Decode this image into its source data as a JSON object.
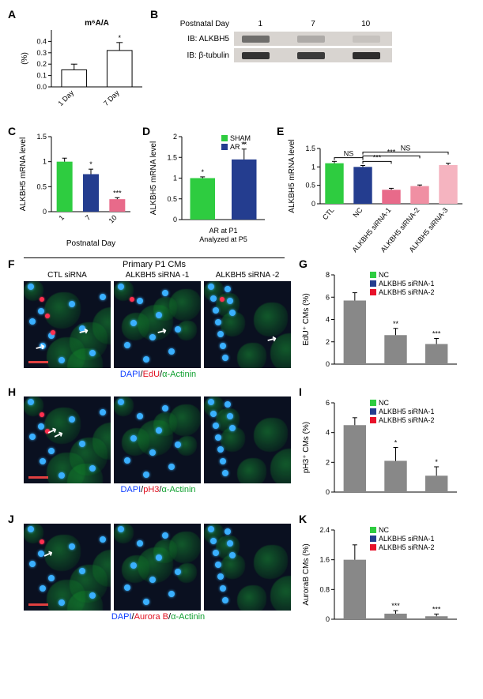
{
  "panelA": {
    "label": "A",
    "title": "m⁶A/A",
    "ylabel": "(%)",
    "ylim": [
      0,
      0.5
    ],
    "yticks": [
      0,
      0.1,
      0.2,
      0.3,
      0.4
    ],
    "categories": [
      "1 Day",
      "7 Day"
    ],
    "values": [
      0.15,
      0.32
    ],
    "errors": [
      0.05,
      0.07
    ],
    "sig": [
      "",
      "*"
    ],
    "bar_border": "#000",
    "bar_fill": "#ffffff"
  },
  "panelB": {
    "label": "B",
    "header": "Postnatal Day",
    "days": [
      "1",
      "7",
      "10"
    ],
    "rows": [
      {
        "label": "IB: ALKBH5",
        "height": 18,
        "bands": [
          {
            "x": 10,
            "w": 35,
            "intensity": 0.6
          },
          {
            "x": 80,
            "w": 35,
            "intensity": 0.25
          },
          {
            "x": 150,
            "w": 35,
            "intensity": 0.1
          }
        ]
      },
      {
        "label": "IB: β-tubulin",
        "height": 18,
        "bands": [
          {
            "x": 10,
            "w": 35,
            "intensity": 0.95
          },
          {
            "x": 80,
            "w": 35,
            "intensity": 0.9
          },
          {
            "x": 150,
            "w": 35,
            "intensity": 0.98
          }
        ]
      }
    ]
  },
  "panelC": {
    "label": "C",
    "ylabel": "ALKBH5 mRNA level",
    "xlabel": "Postnatal Day",
    "ylim": [
      0,
      1.5
    ],
    "yticks": [
      0,
      0.5,
      1.0,
      1.5
    ],
    "categories": [
      "1",
      "7",
      "10"
    ],
    "values": [
      1.0,
      0.75,
      0.25
    ],
    "errors": [
      0.07,
      0.1,
      0.03
    ],
    "colors": [
      "#2ecc40",
      "#243d8f",
      "#e86a8a"
    ],
    "sig": [
      "",
      "*",
      "***"
    ]
  },
  "panelD": {
    "label": "D",
    "ylabel": "ALKBH5 mRNA level",
    "xlabel_lines": [
      "AR at P1",
      "Analyzed at P5"
    ],
    "ylim": [
      0,
      2.0
    ],
    "yticks": [
      0,
      0.5,
      1.0,
      1.5,
      2.0
    ],
    "legend": [
      {
        "label": "SHAM",
        "color": "#2ecc40"
      },
      {
        "label": "AR",
        "color": "#243d8f"
      }
    ],
    "values": [
      1.0,
      1.45
    ],
    "errors": [
      0.03,
      0.25
    ],
    "colors": [
      "#2ecc40",
      "#243d8f"
    ],
    "sig": "**"
  },
  "panelE": {
    "label": "E",
    "ylabel": "ALKBH5 mRNA level",
    "ylim": [
      0,
      1.5
    ],
    "yticks": [
      0,
      0.5,
      1.0,
      1.5
    ],
    "categories": [
      "CTL",
      "NC",
      "ALKBH5 siRNA-1",
      "ALKBH5 siRNA-2",
      "ALKBH5 siRNA-3"
    ],
    "values": [
      1.1,
      1.0,
      0.38,
      0.48,
      1.05
    ],
    "errors": [
      0.05,
      0.04,
      0.04,
      0.03,
      0.05
    ],
    "colors": [
      "#2ecc40",
      "#243d8f",
      "#e86a8a",
      "#f08fa3",
      "#f5b4c0"
    ],
    "sig_bars": [
      {
        "from": 0,
        "to": 1,
        "y": 1.25,
        "label": "NS"
      },
      {
        "from": 1,
        "to": 2,
        "y": 1.15,
        "label": "***"
      },
      {
        "from": 1,
        "to": 3,
        "y": 1.3,
        "label": "***"
      },
      {
        "from": 1,
        "to": 4,
        "y": 1.4,
        "label": "NS"
      }
    ]
  },
  "panelF": {
    "label": "F",
    "header": "Primary P1 CMs",
    "columns": [
      "CTL siRNA",
      "ALKBH5 siRNA -1",
      "ALKBH5 siRNA -2"
    ],
    "stain": {
      "blue": "DAPI",
      "red": "EdU",
      "green": "α-Actinin"
    }
  },
  "panelG": {
    "label": "G",
    "ylabel": "EdU⁺ CMs (%)",
    "ylim": [
      0,
      8
    ],
    "yticks": [
      0,
      2,
      4,
      6,
      8
    ],
    "legend": [
      {
        "label": "NC",
        "color": "#2ecc40"
      },
      {
        "label": "ALKBH5 siRNA-1",
        "color": "#243d8f"
      },
      {
        "label": "ALKBH5 siRNA-2",
        "color": "#e8122a"
      }
    ],
    "values": [
      5.7,
      2.6,
      1.8
    ],
    "errors": [
      0.7,
      0.6,
      0.5
    ],
    "sig": [
      "",
      "**",
      "***"
    ]
  },
  "panelH": {
    "label": "H",
    "stain": {
      "blue": "DAPI",
      "red": "pH3",
      "green": "α-Actinin"
    }
  },
  "panelI": {
    "label": "I",
    "ylabel": "pH3⁺ CMs (%)",
    "ylim": [
      0,
      6
    ],
    "yticks": [
      0,
      2,
      4,
      6
    ],
    "legend": [
      {
        "label": "NC",
        "color": "#2ecc40"
      },
      {
        "label": "ALKBH5 siRNA-1",
        "color": "#243d8f"
      },
      {
        "label": "ALKBH5 siRNA-2",
        "color": "#e8122a"
      }
    ],
    "values": [
      4.5,
      2.1,
      1.1
    ],
    "errors": [
      0.5,
      0.9,
      0.6
    ],
    "sig": [
      "",
      "*",
      "*"
    ]
  },
  "panelJ": {
    "label": "J",
    "stain": {
      "blue": "DAPI",
      "red": "Aurora B",
      "green": "α-Actinin"
    }
  },
  "panelK": {
    "label": "K",
    "ylabel": "AuroraB CMs (%)",
    "ylim": [
      0,
      2.4
    ],
    "yticks": [
      0,
      0.8,
      1.6,
      2.4
    ],
    "legend": [
      {
        "label": "NC",
        "color": "#2ecc40"
      },
      {
        "label": "ALKBH5 siRNA-1",
        "color": "#243d8f"
      },
      {
        "label": "ALKBH5 siRNA-2",
        "color": "#e8122a"
      }
    ],
    "values": [
      1.6,
      0.15,
      0.08
    ],
    "errors": [
      0.4,
      0.08,
      0.06
    ],
    "sig": [
      "",
      "***",
      "***"
    ]
  }
}
